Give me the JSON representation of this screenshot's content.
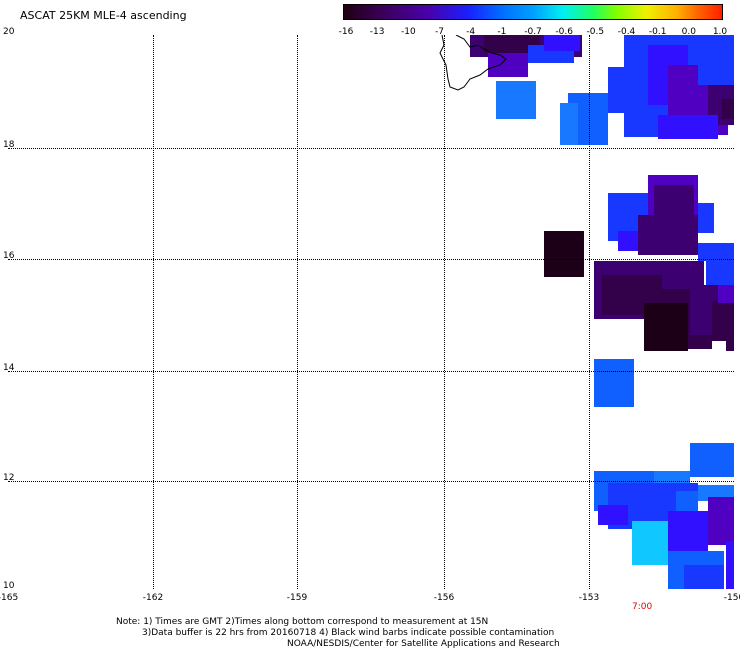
{
  "title": "ASCAT 25KM MLE-4 ascending",
  "colorbar": {
    "labels": [
      "-16",
      "-13",
      "-10",
      "-7",
      "-4",
      "-1",
      "-0.7",
      "-0.6",
      "-0.5",
      "-0.4",
      "-0.1",
      "0.0",
      "1.0"
    ]
  },
  "latitude_labels": [
    "20",
    "18",
    "16",
    "14",
    "12",
    "10"
  ],
  "longitude_labels": [
    "-165",
    "-162",
    "-159",
    "-156",
    "-153",
    "-150"
  ],
  "time_label": "7:00",
  "notes": {
    "line1": "Note: 1) Times are GMT 2)Times along bottom correspond to measurement at 15N",
    "line2": "3)Data buffer is 22 hrs from 20160718 4) Black wind barbs indicate possible contamination",
    "line3": "NOAA/NESDIS/Center for Satellite Applications and Research"
  },
  "colors": {
    "dark": "#1c0018",
    "deep_purple": "#33004a",
    "purple": "#3c0070",
    "violet": "#5000c0",
    "indigo": "#3010ff",
    "blue": "#1838ff",
    "medium_blue": "#1060ff",
    "light_blue": "#1878ff",
    "cyan": "#10c8ff"
  }
}
